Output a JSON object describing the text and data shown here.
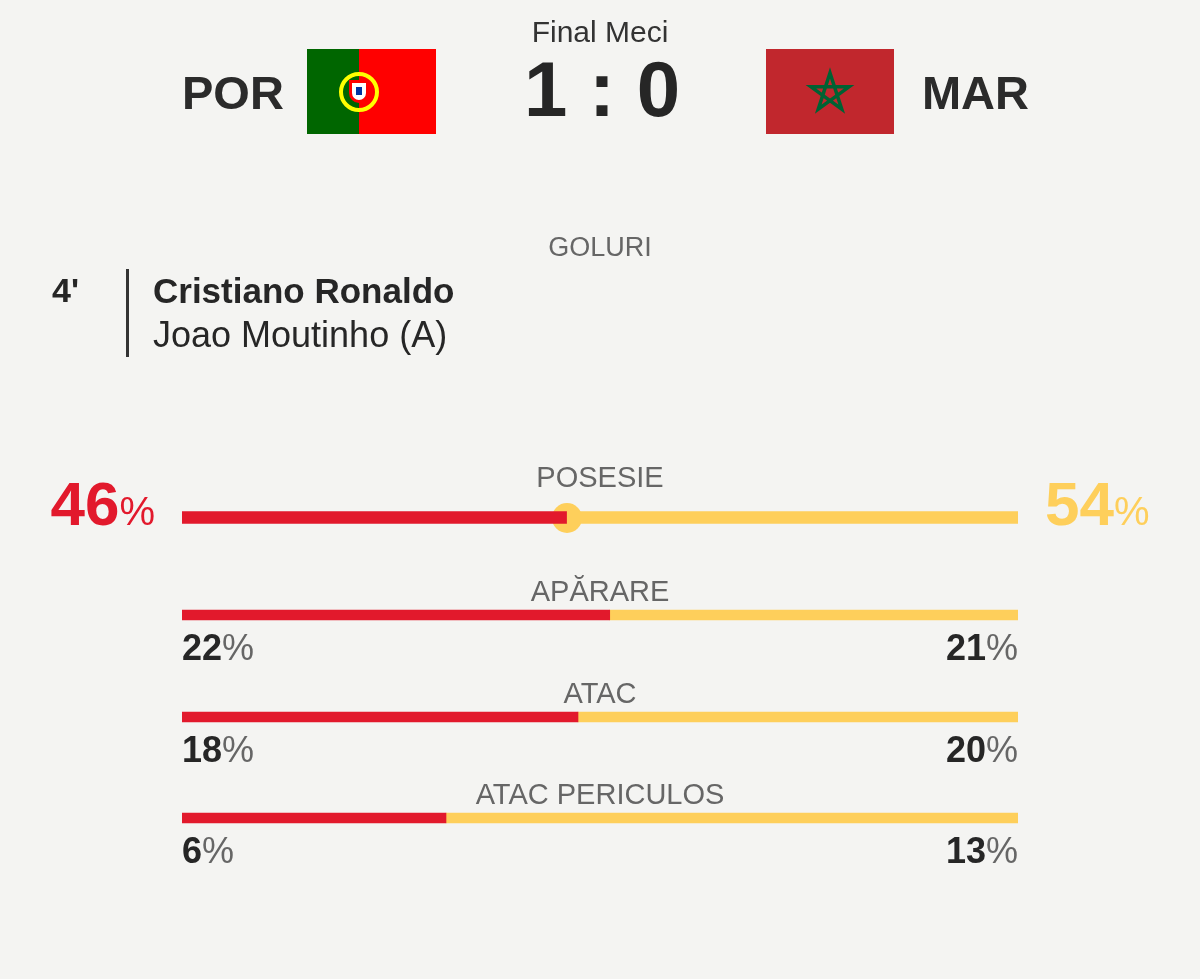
{
  "chart_data": [
    {
      "type": "other",
      "title": "Final Meci",
      "annotations": [
        "POR",
        "1 : 0",
        "MAR",
        "GOLURI",
        "4'",
        "Cristiano Ronaldo",
        "Joao Moutinho (A)"
      ]
    },
    {
      "type": "bar",
      "orientation": "horizontal",
      "stacked": true,
      "title": "POSESIE",
      "categories": [
        null
      ],
      "xlim": [
        0,
        100
      ],
      "tick_labels": false,
      "series": [
        {
          "color": "#e2192c",
          "values": [
            46
          ],
          "value_labels": [
            "46%"
          ]
        },
        {
          "color": "#fecf5b",
          "values": [
            54
          ],
          "value_labels": [
            "54%"
          ]
        }
      ]
    },
    {
      "type": "bar",
      "orientation": "horizontal",
      "stacked": true,
      "title": "APĂRARE",
      "categories": [
        null
      ],
      "xlim": [
        0,
        43
      ],
      "tick_labels": false,
      "series": [
        {
          "color": "#e2192c",
          "values": [
            22
          ],
          "value_labels": [
            "22%"
          ]
        },
        {
          "color": "#fecf5b",
          "values": [
            21
          ],
          "value_labels": [
            "21%"
          ]
        }
      ]
    },
    {
      "type": "bar",
      "orientation": "horizontal",
      "stacked": true,
      "title": "ATAC",
      "categories": [
        null
      ],
      "xlim": [
        0,
        38
      ],
      "tick_labels": false,
      "series": [
        {
          "color": "#e2192c",
          "values": [
            18
          ],
          "value_labels": [
            "18%"
          ]
        },
        {
          "color": "#fecf5b",
          "values": [
            20
          ],
          "value_labels": [
            "20%"
          ]
        }
      ]
    },
    {
      "type": "bar",
      "orientation": "horizontal",
      "stacked": true,
      "title": "ATAC PERICULOS",
      "categories": [
        null
      ],
      "xlim": [
        0,
        19
      ],
      "tick_labels": false,
      "series": [
        {
          "color": "#e2192c",
          "values": [
            6
          ],
          "value_labels": [
            "6%"
          ]
        },
        {
          "color": "#fecf5b",
          "values": [
            13
          ],
          "value_labels": [
            "13%"
          ]
        }
      ]
    }
  ]
}
